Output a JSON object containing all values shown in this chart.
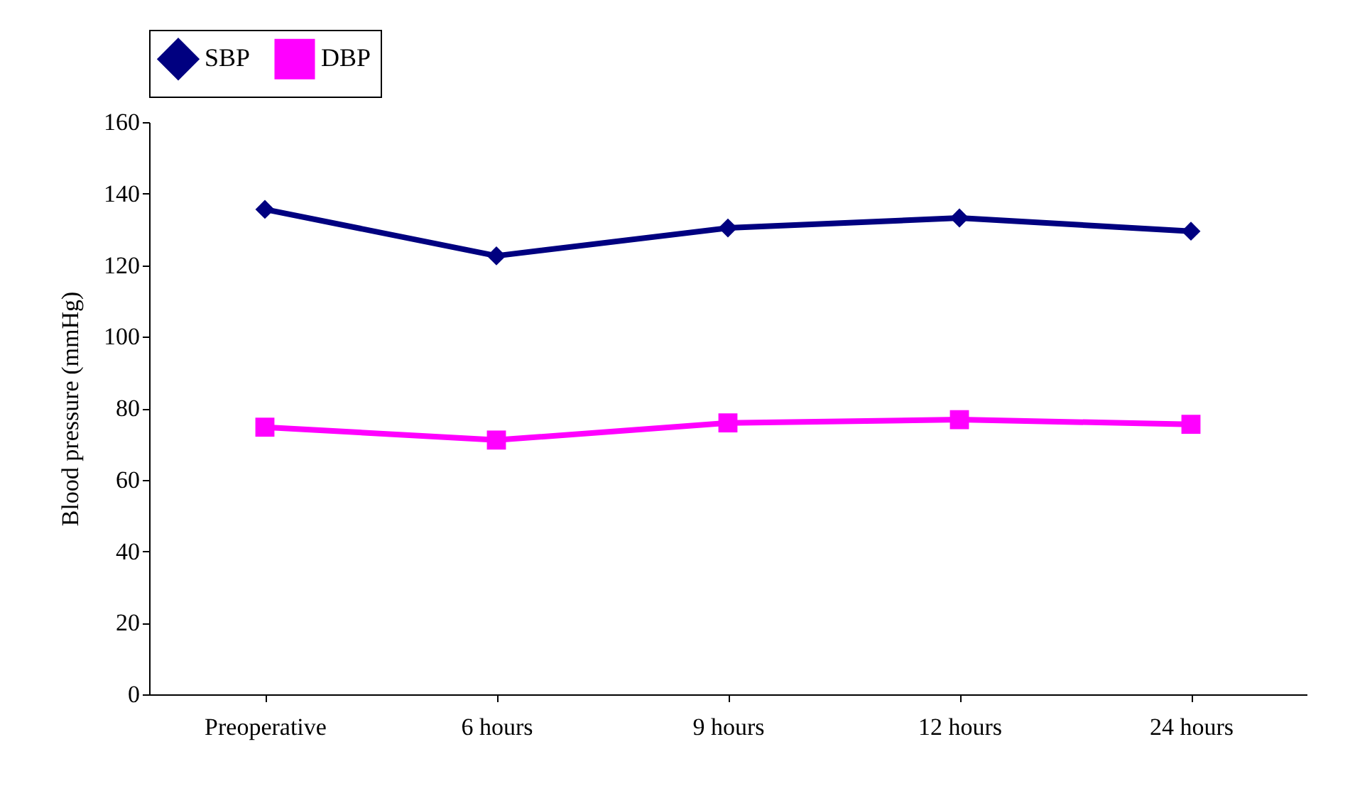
{
  "chart_data": {
    "type": "line",
    "ylabel": "Blood pressure (mmHg)",
    "categories": [
      "Preoperative",
      "6 hours",
      "9 hours",
      "12 hours",
      "24 hours"
    ],
    "series": [
      {
        "name": "SBP",
        "color": "#000080",
        "marker": "diamond",
        "values": [
          135.6,
          122.6,
          130.4,
          133.2,
          129.5
        ]
      },
      {
        "name": "DBP",
        "color": "#ff00ff",
        "marker": "square",
        "values": [
          74.7,
          71.1,
          75.9,
          76.8,
          75.5
        ]
      }
    ],
    "ylim": [
      0,
      160
    ],
    "yticks": [
      0,
      20,
      40,
      60,
      80,
      100,
      120,
      140,
      160
    ],
    "grid": false,
    "legend": "top",
    "line_style": "solid"
  }
}
